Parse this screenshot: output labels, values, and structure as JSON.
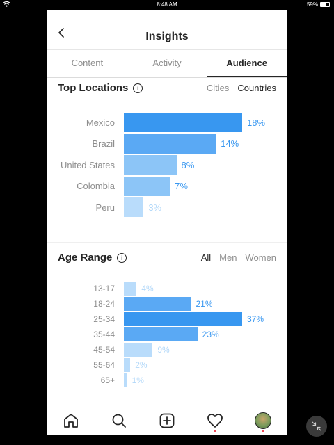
{
  "status_bar": {
    "time": "8:48 AM",
    "battery": "59%"
  },
  "header": {
    "title": "Insights"
  },
  "tabs": [
    {
      "label": "Content",
      "active": false
    },
    {
      "label": "Activity",
      "active": false
    },
    {
      "label": "Audience",
      "active": true
    }
  ],
  "top_locations": {
    "title": "Top Locations",
    "filters": [
      {
        "label": "Cities",
        "active": false
      },
      {
        "label": "Countries",
        "active": true
      }
    ],
    "rows": [
      {
        "label": "Mexico",
        "value": 18,
        "value_label": "18%"
      },
      {
        "label": "Brazil",
        "value": 14,
        "value_label": "14%"
      },
      {
        "label": "United States",
        "value": 8,
        "value_label": "8%"
      },
      {
        "label": "Colombia",
        "value": 7,
        "value_label": "7%"
      },
      {
        "label": "Peru",
        "value": 3,
        "value_label": "3%"
      }
    ]
  },
  "age_range": {
    "title": "Age Range",
    "filters": [
      {
        "label": "All",
        "active": true
      },
      {
        "label": "Men",
        "active": false
      },
      {
        "label": "Women",
        "active": false
      }
    ],
    "rows": [
      {
        "label": "13-17",
        "value": 4,
        "value_label": "4%"
      },
      {
        "label": "18-24",
        "value": 21,
        "value_label": "21%"
      },
      {
        "label": "25-34",
        "value": 37,
        "value_label": "37%"
      },
      {
        "label": "35-44",
        "value": 23,
        "value_label": "23%"
      },
      {
        "label": "45-54",
        "value": 9,
        "value_label": "9%"
      },
      {
        "label": "55-64",
        "value": 2,
        "value_label": "2%"
      },
      {
        "label": "65+",
        "value": 1,
        "value_label": "1%"
      }
    ]
  },
  "colors": {
    "bar_strong": "#3897f0",
    "bar_medium": "#5aa9f4",
    "bar_light": "#8cc5f7",
    "bar_faint": "#b9dcfb",
    "value_strong": "#3897f0",
    "value_faint": "#b2d8f9"
  },
  "bottom_nav": [
    {
      "icon": "home-icon",
      "dot": false
    },
    {
      "icon": "search-icon",
      "dot": false
    },
    {
      "icon": "add-icon",
      "dot": false
    },
    {
      "icon": "heart-icon",
      "dot": true
    },
    {
      "icon": "profile-avatar",
      "dot": true
    }
  ]
}
